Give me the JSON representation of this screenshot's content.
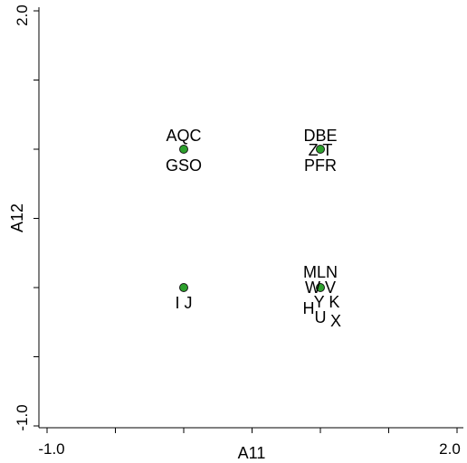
{
  "chart_data": {
    "type": "scatter",
    "title": "",
    "xlabel": "A11",
    "ylabel": "A12",
    "xlim": [
      -1.0,
      2.0
    ],
    "ylim": [
      -1.0,
      2.0
    ],
    "x_tick_labels": [
      "-1.0",
      "2.0"
    ],
    "y_tick_labels": [
      "-1.0",
      "2.0"
    ],
    "grid": false,
    "legend": "none",
    "marker_color": "#2ca02c",
    "points": [
      {
        "x": 0.0,
        "y": 1.0,
        "labels": [
          "AQC",
          "GSO"
        ]
      },
      {
        "x": 1.0,
        "y": 1.0,
        "labels": [
          "DBE",
          "Z T",
          "PFR"
        ]
      },
      {
        "x": 0.0,
        "y": 0.0,
        "labels": [
          "I J"
        ]
      },
      {
        "x": 1.0,
        "y": 0.0,
        "labels": [
          "MLN",
          "W V",
          "Y K",
          "H",
          "U",
          "X"
        ]
      }
    ]
  }
}
